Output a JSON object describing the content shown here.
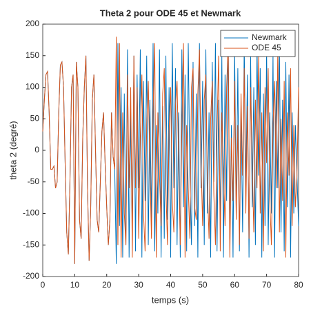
{
  "chart_data": {
    "type": "line",
    "title": "Theta 2 pour ODE 45 et Newmark",
    "xlabel": "temps (s)",
    "ylabel": "theta 2 (degré)",
    "x": [
      0,
      0.5,
      1,
      1.5,
      2,
      2.5,
      3,
      3.5,
      4,
      4.5,
      5,
      5.5,
      6,
      6.5,
      7,
      7.5,
      8,
      8.5,
      9,
      9.5,
      10,
      10.5,
      11,
      11.5,
      12,
      12.5,
      13,
      13.5,
      14,
      14.5,
      15,
      15.5,
      16,
      16.5,
      17,
      17.5,
      18,
      18.5,
      19,
      19.5,
      20,
      20.5,
      21,
      21.5,
      22,
      22.5,
      23,
      23.5,
      24,
      24.5,
      25,
      25.5,
      26,
      26.5,
      27,
      27.5,
      28,
      28.5,
      29,
      29.5,
      30,
      30.5,
      31,
      31.5,
      32,
      32.5,
      33,
      33.5,
      34,
      34.5,
      35,
      35.5,
      36,
      36.5,
      37,
      37.5,
      38,
      38.5,
      39,
      39.5,
      40,
      40.5,
      41,
      41.5,
      42,
      42.5,
      43,
      43.5,
      44,
      44.5,
      45,
      45.5,
      46,
      46.5,
      47,
      47.5,
      48,
      48.5,
      49,
      49.5,
      50,
      50.5,
      51,
      51.5,
      52,
      52.5,
      53,
      53.5,
      54,
      54.5,
      55,
      55.5,
      56,
      56.5,
      57,
      57.5,
      58,
      58.5,
      59,
      59.5,
      60,
      60.5,
      61,
      61.5,
      62,
      62.5,
      63,
      63.5,
      64,
      64.5,
      65,
      65.5,
      66,
      66.5,
      67,
      67.5,
      68,
      68.5,
      69,
      69.5,
      70,
      70.5,
      71,
      71.5,
      72,
      72.5,
      73,
      73.5,
      74,
      74.5,
      75,
      75.5,
      76,
      76.5,
      77,
      77.5,
      78,
      78.5,
      79,
      79.5,
      80
    ],
    "series": [
      {
        "name": "Newmark",
        "color": "#0072bd",
        "values": [
          30,
          80,
          120,
          125,
          60,
          -30,
          -30,
          -25,
          -60,
          -50,
          60,
          135,
          140,
          100,
          -20,
          -130,
          -165,
          -50,
          100,
          120,
          -180,
          140,
          100,
          -110,
          -140,
          20,
          100,
          150,
          -60,
          -175,
          -90,
          80,
          120,
          0,
          -110,
          -130,
          -50,
          30,
          60,
          -20,
          -90,
          -150,
          -110,
          60,
          -10,
          -30,
          -180,
          170,
          -120,
          100,
          -170,
          90,
          -150,
          160,
          -170,
          60,
          -130,
          150,
          -160,
          120,
          -60,
          160,
          -170,
          110,
          -80,
          150,
          -150,
          80,
          -120,
          170,
          -160,
          40,
          -100,
          160,
          -170,
          70,
          -140,
          150,
          -110,
          100,
          -170,
          170,
          -60,
          130,
          -150,
          60,
          -170,
          160,
          -90,
          120,
          -160,
          170,
          -40,
          -150,
          140,
          -120,
          90,
          -170,
          170,
          -60,
          110,
          -150,
          160,
          -100,
          60,
          -170,
          140,
          -50,
          170,
          -160,
          80,
          -120,
          150,
          -170,
          120,
          -80,
          170,
          -140,
          40,
          -170,
          160,
          -100,
          130,
          -160,
          70,
          -130,
          170,
          -60,
          120,
          -170,
          150,
          -90,
          100,
          -150,
          170,
          -40,
          130,
          -170,
          90,
          -120,
          160,
          -150,
          60,
          -100,
          150,
          -170,
          110,
          -60,
          170,
          -130,
          80,
          -160,
          140,
          -90,
          120,
          -170,
          60,
          -100,
          40,
          -40,
          -120
        ]
      },
      {
        "name": "ODE 45",
        "color": "#d95319",
        "values": [
          30,
          80,
          120,
          125,
          60,
          -30,
          -30,
          -25,
          -60,
          -50,
          60,
          135,
          140,
          100,
          -20,
          -130,
          -165,
          -50,
          100,
          120,
          -180,
          140,
          100,
          -110,
          -140,
          20,
          100,
          150,
          -60,
          -175,
          -90,
          80,
          120,
          0,
          -110,
          -130,
          -50,
          30,
          60,
          -20,
          -90,
          -150,
          -110,
          60,
          -10,
          -30,
          180,
          -150,
          170,
          -170,
          60,
          -100,
          -150,
          120,
          -60,
          100,
          -170,
          150,
          -60,
          100,
          -140,
          20,
          120,
          -100,
          -160,
          40,
          110,
          -30,
          -140,
          60,
          170,
          -170,
          60,
          -40,
          -120,
          90,
          130,
          -60,
          -150,
          30,
          100,
          -80,
          -130,
          70,
          110,
          -20,
          -150,
          40,
          170,
          -170,
          40,
          -60,
          -140,
          100,
          130,
          -90,
          -110,
          90,
          160,
          -20,
          -120,
          80,
          120,
          -60,
          -140,
          50,
          110,
          -70,
          -150,
          30,
          150,
          -160,
          60,
          -30,
          -120,
          100,
          170,
          -170,
          20,
          -80,
          110,
          -110,
          40,
          -150,
          90,
          -40,
          130,
          -100,
          70,
          -140,
          100,
          -20,
          -130,
          80,
          -60,
          150,
          -100,
          60,
          -160,
          100,
          -20,
          130,
          -80,
          -150,
          40,
          110,
          -60,
          160,
          -130,
          50,
          -80,
          110,
          -170,
          60,
          -40,
          130,
          -120,
          40,
          -90,
          -40,
          100
        ]
      }
    ],
    "xlim": [
      0,
      80
    ],
    "xticks": [
      0,
      10,
      20,
      30,
      40,
      50,
      60,
      70,
      80
    ],
    "ylim": [
      -200,
      200
    ],
    "yticks": [
      -200,
      -150,
      -100,
      -50,
      0,
      50,
      100,
      150,
      200
    ],
    "legend": "upper right",
    "grid": false
  }
}
